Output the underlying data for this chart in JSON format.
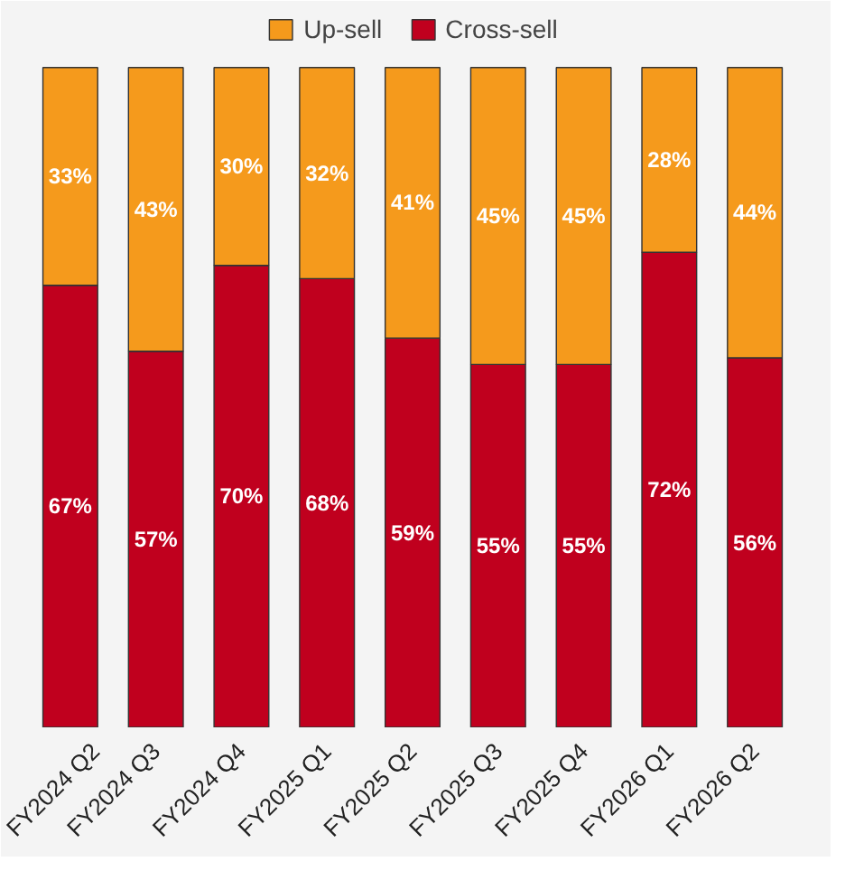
{
  "chart_data": {
    "type": "bar",
    "stacked": true,
    "legend": "top",
    "grid": false,
    "categories": [
      "FY2024 Q2",
      "FY2024 Q3",
      "FY2024 Q4",
      "FY2025 Q1",
      "FY2025 Q2",
      "FY2025 Q3",
      "FY2025 Q4",
      "FY2026 Q1",
      "FY2026 Q2"
    ],
    "series": [
      {
        "name": "Cross-sell",
        "color": "#c0001e",
        "values": [
          67,
          57,
          70,
          68,
          59,
          55,
          55,
          72,
          56
        ],
        "value_labels": [
          "67%",
          "57%",
          "70%",
          "68%",
          "59%",
          "55%",
          "55%",
          "72%",
          "56%"
        ]
      },
      {
        "name": "Up-sell",
        "color": "#f59a1c",
        "values": [
          33,
          43,
          30,
          32,
          41,
          45,
          45,
          28,
          44
        ],
        "value_labels": [
          "33%",
          "43%",
          "30%",
          "32%",
          "41%",
          "45%",
          "45%",
          "28%",
          "44%"
        ]
      }
    ]
  }
}
